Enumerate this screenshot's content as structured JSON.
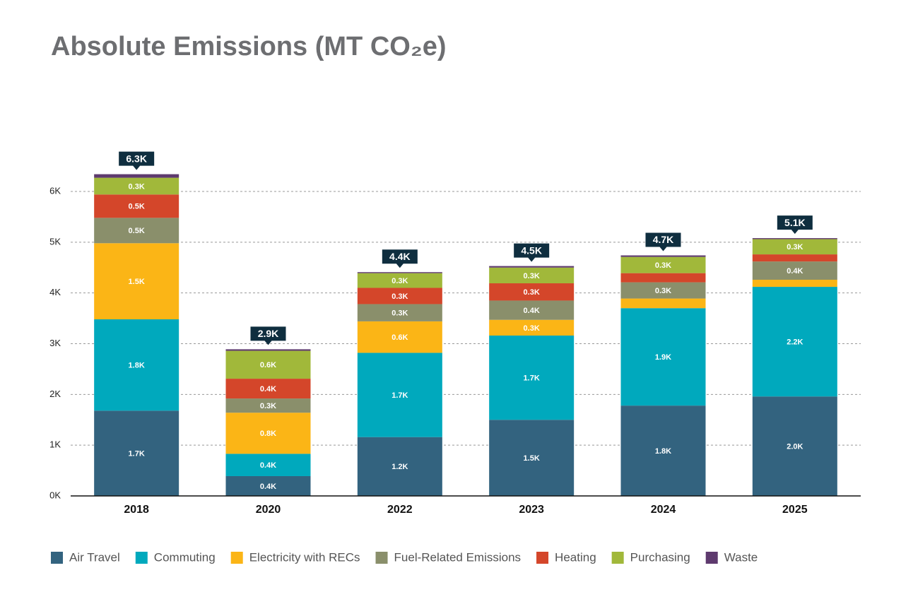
{
  "chart_data": {
    "type": "stacked-bar",
    "title": "Absolute Emissions (MT CO₂e)",
    "categories": [
      "2018",
      "2020",
      "2022",
      "2023",
      "2024",
      "2025"
    ],
    "series": [
      {
        "name": "Air Travel",
        "color": "#33637f",
        "values": [
          1680,
          390,
          1160,
          1500,
          1780,
          1960
        ],
        "value_labels": [
          "1.7K",
          "0.4K",
          "1.2K",
          "1.5K",
          "1.8K",
          "2.0K"
        ]
      },
      {
        "name": "Commuting",
        "color": "#00a9bd",
        "values": [
          1800,
          440,
          1660,
          1660,
          1920,
          2160
        ],
        "value_labels": [
          "1.8K",
          "0.4K",
          "1.7K",
          "1.7K",
          "1.9K",
          "2.2K"
        ]
      },
      {
        "name": "Electricity with RECs",
        "color": "#fbb516",
        "values": [
          1500,
          810,
          620,
          310,
          190,
          140
        ],
        "value_labels": [
          "1.5K",
          "0.8K",
          "0.6K",
          "0.3K",
          null,
          null
        ]
      },
      {
        "name": "Fuel-Related Emissions",
        "color": "#8a8f6b",
        "values": [
          500,
          280,
          340,
          380,
          320,
          360
        ],
        "value_labels": [
          "0.5K",
          "0.3K",
          "0.3K",
          "0.4K",
          "0.3K",
          "0.4K"
        ]
      },
      {
        "name": "Heating",
        "color": "#d4462a",
        "values": [
          460,
          390,
          320,
          340,
          180,
          140
        ],
        "value_labels": [
          "0.5K",
          "0.4K",
          "0.3K",
          "0.3K",
          null,
          null
        ]
      },
      {
        "name": "Purchasing",
        "color": "#a1b83a",
        "values": [
          330,
          550,
          290,
          310,
          320,
          300
        ],
        "value_labels": [
          "0.3K",
          "0.6K",
          "0.3K",
          "0.3K",
          "0.3K",
          "0.3K"
        ]
      },
      {
        "name": "Waste",
        "color": "#5e3a6e",
        "values": [
          70,
          30,
          20,
          30,
          30,
          20
        ]
      }
    ],
    "totals": [
      6340,
      2890,
      4410,
      4530,
      4740,
      5080
    ],
    "total_labels": [
      "6.3K",
      "2.9K",
      "4.4K",
      "4.5K",
      "4.7K",
      "5.1K"
    ],
    "ylim": [
      0,
      6000
    ],
    "yticks": [
      {
        "value": 0,
        "label": "0K"
      },
      {
        "value": 1000,
        "label": "1K"
      },
      {
        "value": 2000,
        "label": "2K"
      },
      {
        "value": 3000,
        "label": "3K"
      },
      {
        "value": 4000,
        "label": "4K"
      },
      {
        "value": 5000,
        "label": "5K"
      },
      {
        "value": 6000,
        "label": "6K"
      }
    ],
    "grid": true,
    "legend": "bottom"
  }
}
